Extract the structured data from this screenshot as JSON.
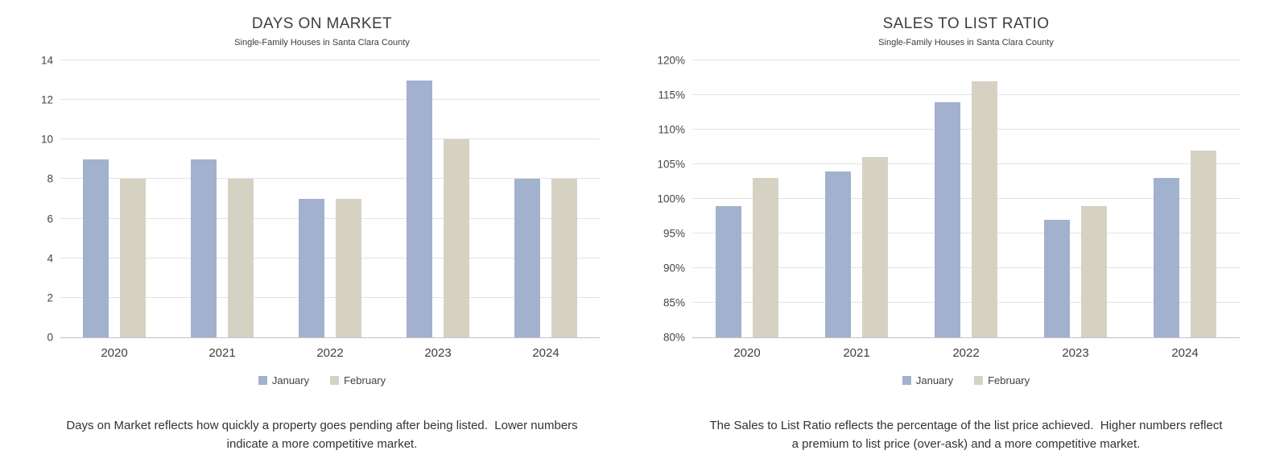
{
  "page": {
    "background": "#ffffff"
  },
  "colors": {
    "january": "#a2b1ce",
    "february": "#d5d2c4",
    "gridline": "#e3e3e3",
    "axis_line": "#c3c3c3",
    "title_text": "#3d3d3d",
    "tick_text": "#454545",
    "caption_text": "#333333"
  },
  "chart_data": [
    {
      "type": "bar",
      "title": "DAYS ON MARKET",
      "subtitle": "Single-Family Houses in Santa Clara County",
      "categories": [
        "2020",
        "2021",
        "2022",
        "2023",
        "2024"
      ],
      "series": [
        {
          "name": "January",
          "color": "#a2b1ce",
          "values": [
            9,
            9,
            7,
            13,
            8
          ]
        },
        {
          "name": "February",
          "color": "#d5d2c4",
          "values": [
            8,
            8,
            7,
            10,
            8
          ]
        }
      ],
      "ylim": [
        0,
        14
      ],
      "ytick_step": 2,
      "ytick_suffix": "",
      "grid": true,
      "legend_position": "bottom",
      "caption": "Days on Market reflects how quickly a property goes pending after being listed.  Lower numbers indicate a more competitive market."
    },
    {
      "type": "bar",
      "title": "SALES TO LIST RATIO",
      "subtitle": "Single-Family Houses in Santa Clara County",
      "categories": [
        "2020",
        "2021",
        "2022",
        "2023",
        "2024"
      ],
      "series": [
        {
          "name": "January",
          "color": "#a2b1ce",
          "values": [
            99,
            104,
            114,
            97,
            103
          ]
        },
        {
          "name": "February",
          "color": "#d5d2c4",
          "values": [
            103,
            106,
            117,
            99,
            107
          ]
        }
      ],
      "ylim": [
        80,
        120
      ],
      "ytick_step": 5,
      "ytick_suffix": "%",
      "grid": true,
      "legend_position": "bottom",
      "caption": "The Sales to List Ratio reflects the percentage of the list price achieved.  Higher numbers reflect a premium to list price (over-ask) and a more competitive market."
    }
  ]
}
